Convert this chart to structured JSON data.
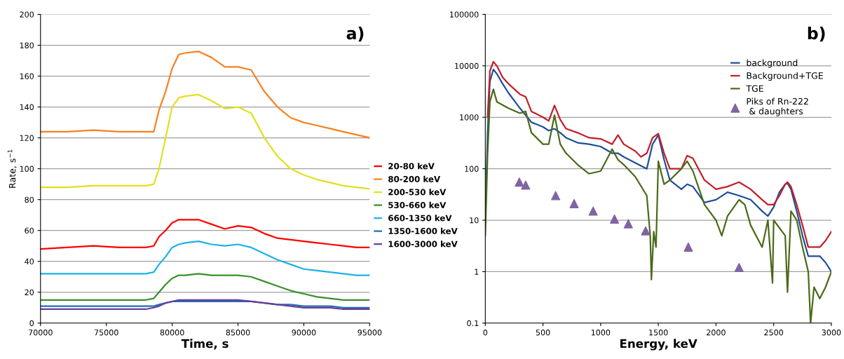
{
  "chart_data": [
    {
      "type": "line",
      "title": "a)",
      "xlabel": "Time, s",
      "ylabel": "Rate, s$^{−1}$",
      "xlim": [
        70000,
        95000
      ],
      "xticks": [
        70000,
        75000,
        80000,
        85000,
        90000,
        95000
      ],
      "ylim": [
        0,
        200
      ],
      "yticks": [
        0,
        20,
        40,
        60,
        80,
        100,
        120,
        140,
        160,
        180,
        200
      ],
      "grid": "y",
      "legend": "right",
      "marker": "none",
      "x": [
        70000,
        72000,
        74000,
        76000,
        78000,
        78600,
        79000,
        79500,
        80000,
        80500,
        81000,
        82000,
        83000,
        84000,
        85000,
        86000,
        87000,
        88000,
        89000,
        90000,
        91000,
        92000,
        93000,
        94000,
        95000
      ],
      "series": [
        {
          "name": "20-80 keV",
          "color": "#ff0000",
          "values": [
            48,
            49,
            50,
            49,
            49,
            50,
            56,
            60,
            65,
            67,
            67,
            67,
            64,
            61,
            63,
            62,
            58,
            55,
            54,
            53,
            52,
            51,
            50,
            49,
            49
          ]
        },
        {
          "name": "80-200 keV",
          "color": "#f58220",
          "values": [
            124,
            124,
            125,
            124,
            124,
            124,
            138,
            150,
            165,
            174,
            175,
            176,
            172,
            166,
            166,
            164,
            150,
            140,
            133,
            130,
            128,
            126,
            124,
            122,
            120
          ]
        },
        {
          "name": "200-530 keV",
          "color": "#e0e020",
          "values": [
            88,
            88,
            89,
            89,
            89,
            90,
            100,
            120,
            140,
            146,
            147,
            148,
            144,
            139,
            140,
            136,
            120,
            108,
            100,
            96,
            93,
            91,
            89,
            88,
            87
          ]
        },
        {
          "name": "530-660 keV",
          "color": "#3a8f2a",
          "values": [
            15,
            15,
            15,
            15,
            15,
            16,
            20,
            25,
            29,
            31,
            31,
            32,
            31,
            31,
            31,
            30,
            27,
            24,
            21,
            19,
            17,
            16,
            15,
            15,
            15
          ]
        },
        {
          "name": "660-1350 keV",
          "color": "#1ab2e8",
          "values": [
            32,
            32,
            32,
            32,
            32,
            33,
            38,
            43,
            49,
            51,
            52,
            53,
            51,
            50,
            51,
            49,
            45,
            41,
            38,
            35,
            34,
            33,
            32,
            31,
            31
          ]
        },
        {
          "name": "1350-1600 keV",
          "color": "#1f6fb5",
          "values": [
            11,
            11,
            11,
            11,
            11,
            11,
            12,
            13,
            14,
            14,
            14,
            14,
            14,
            14,
            14,
            14,
            13,
            12,
            12,
            11,
            11,
            11,
            10,
            10,
            10
          ]
        },
        {
          "name": "1600-3000 keV",
          "color": "#6a3d9a",
          "values": [
            9,
            9,
            9,
            9,
            9,
            10,
            11,
            13,
            14,
            15,
            15,
            15,
            15,
            15,
            15,
            14,
            13,
            12,
            11,
            10,
            10,
            10,
            9,
            9,
            9
          ]
        }
      ]
    },
    {
      "type": "line",
      "title": "b)",
      "xlabel": "Energy, keV",
      "log": "y",
      "xlim": [
        0,
        3000
      ],
      "xticks": [
        0,
        500,
        1000,
        1500,
        2000,
        2500,
        3000
      ],
      "ylim": [
        0.1,
        100000
      ],
      "yticks": [
        0.1,
        1,
        10,
        100,
        1000,
        10000,
        100000
      ],
      "grid": "y",
      "legend": "top right",
      "marker": "none",
      "series": [
        {
          "name": "background",
          "color": "#1f4e9a",
          "x": [
            0,
            20,
            40,
            70,
            100,
            150,
            200,
            300,
            350,
            400,
            500,
            550,
            600,
            650,
            700,
            800,
            900,
            1000,
            1100,
            1150,
            1200,
            1300,
            1400,
            1450,
            1500,
            1550,
            1600,
            1700,
            1750,
            1800,
            1900,
            2000,
            2100,
            2200,
            2300,
            2400,
            2450,
            2500,
            2550,
            2600,
            2620,
            2650,
            2700,
            2750,
            2800,
            2850,
            2900,
            2950,
            3000
          ],
          "values": [
            10,
            500,
            5000,
            8500,
            7000,
            4500,
            3000,
            1500,
            1100,
            800,
            650,
            550,
            600,
            500,
            400,
            320,
            300,
            270,
            200,
            200,
            170,
            130,
            100,
            300,
            450,
            150,
            60,
            40,
            50,
            45,
            22,
            25,
            35,
            30,
            25,
            15,
            12,
            18,
            35,
            50,
            52,
            40,
            15,
            5,
            2,
            2,
            2,
            1.5,
            1
          ]
        },
        {
          "name": "Background+TGE",
          "color": "#c0202a",
          "x": [
            20,
            40,
            70,
            100,
            150,
            200,
            300,
            350,
            400,
            500,
            550,
            600,
            650,
            700,
            800,
            900,
            1000,
            1100,
            1150,
            1200,
            1300,
            1350,
            1400,
            1450,
            1500,
            1550,
            1600,
            1700,
            1750,
            1800,
            1900,
            2000,
            2100,
            2200,
            2300,
            2400,
            2450,
            2500,
            2550,
            2600,
            2620,
            2650,
            2700,
            2750,
            2800,
            2850,
            2900,
            2950,
            3000
          ],
          "values": [
            1000,
            8000,
            12000,
            10000,
            6000,
            4500,
            2800,
            2500,
            1300,
            1000,
            850,
            1700,
            900,
            600,
            500,
            400,
            380,
            300,
            450,
            300,
            220,
            170,
            200,
            400,
            480,
            200,
            100,
            100,
            180,
            160,
            60,
            40,
            45,
            55,
            40,
            25,
            20,
            20,
            30,
            50,
            55,
            45,
            20,
            8,
            3,
            3,
            3,
            4,
            6
          ]
        },
        {
          "name": "TGE",
          "color": "#4a6a1a",
          "x": [
            0,
            20,
            40,
            70,
            100,
            200,
            300,
            350,
            400,
            500,
            550,
            600,
            650,
            700,
            800,
            900,
            1000,
            1100,
            1150,
            1200,
            1300,
            1400,
            1430,
            1440,
            1460,
            1480,
            1500,
            1550,
            1600,
            1700,
            1750,
            1800,
            1900,
            2000,
            2050,
            2100,
            2200,
            2250,
            2300,
            2400,
            2450,
            2490,
            2500,
            2600,
            2620,
            2650,
            2700,
            2750,
            2800,
            2820,
            2850,
            2900,
            2950,
            3000
          ],
          "values": [
            5,
            200,
            2000,
            3500,
            2000,
            1500,
            1200,
            1300,
            500,
            300,
            300,
            1100,
            300,
            200,
            120,
            80,
            90,
            240,
            150,
            120,
            70,
            30,
            5,
            0.7,
            6,
            3,
            140,
            50,
            60,
            100,
            140,
            90,
            20,
            10,
            5,
            12,
            25,
            20,
            8,
            3,
            10,
            0.6,
            10,
            5,
            0.4,
            15,
            10,
            3,
            1,
            0.1,
            0.5,
            0.3,
            0.5,
            1
          ]
        },
        {
          "name": "Piks of Rn-222\n & daughters",
          "type": "scatter",
          "marker": "triangle",
          "color": "#8064a2",
          "x": [
            295,
            350,
            610,
            770,
            935,
            1120,
            1240,
            1390,
            1760,
            2200
          ],
          "values": [
            55,
            48,
            30,
            21,
            15,
            10.5,
            8.5,
            6.2,
            3,
            1.2
          ]
        }
      ]
    }
  ]
}
